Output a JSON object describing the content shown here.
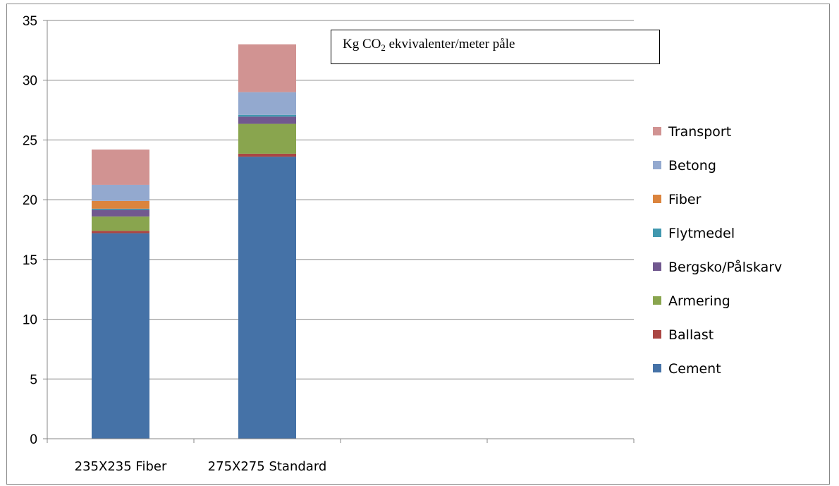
{
  "chart_data": {
    "type": "bar",
    "stacked": true,
    "title_parts": {
      "pre": "Kg CO",
      "sub": "2",
      "post": " ekvivalenter/meter påle"
    },
    "categories": [
      "235X235 Fiber",
      "275X275 Standard"
    ],
    "ylim": [
      0,
      35
    ],
    "yticks": [
      "0",
      "5",
      "10",
      "15",
      "20",
      "25",
      "30",
      "35"
    ],
    "extra_x_slots": 2,
    "grid": "horizontal",
    "legend_position": "right",
    "series": [
      {
        "name": "Cement",
        "color": "#4572A7",
        "values": [
          17.2,
          23.6
        ]
      },
      {
        "name": "Ballast",
        "color": "#AA4643",
        "values": [
          0.2,
          0.25
        ]
      },
      {
        "name": "Armering",
        "color": "#89A54E",
        "values": [
          1.2,
          2.5
        ]
      },
      {
        "name": "Bergsko/Pålskarv",
        "color": "#71588F",
        "values": [
          0.55,
          0.6
        ]
      },
      {
        "name": "Flytmedel",
        "color": "#4198AF",
        "values": [
          0.1,
          0.15
        ]
      },
      {
        "name": "Fiber",
        "color": "#DB843D",
        "values": [
          0.65,
          0
        ]
      },
      {
        "name": "Betong",
        "color": "#93A9CF",
        "values": [
          1.35,
          1.9
        ]
      },
      {
        "name": "Transport",
        "color": "#D19392",
        "values": [
          2.95,
          4.0
        ]
      }
    ]
  }
}
